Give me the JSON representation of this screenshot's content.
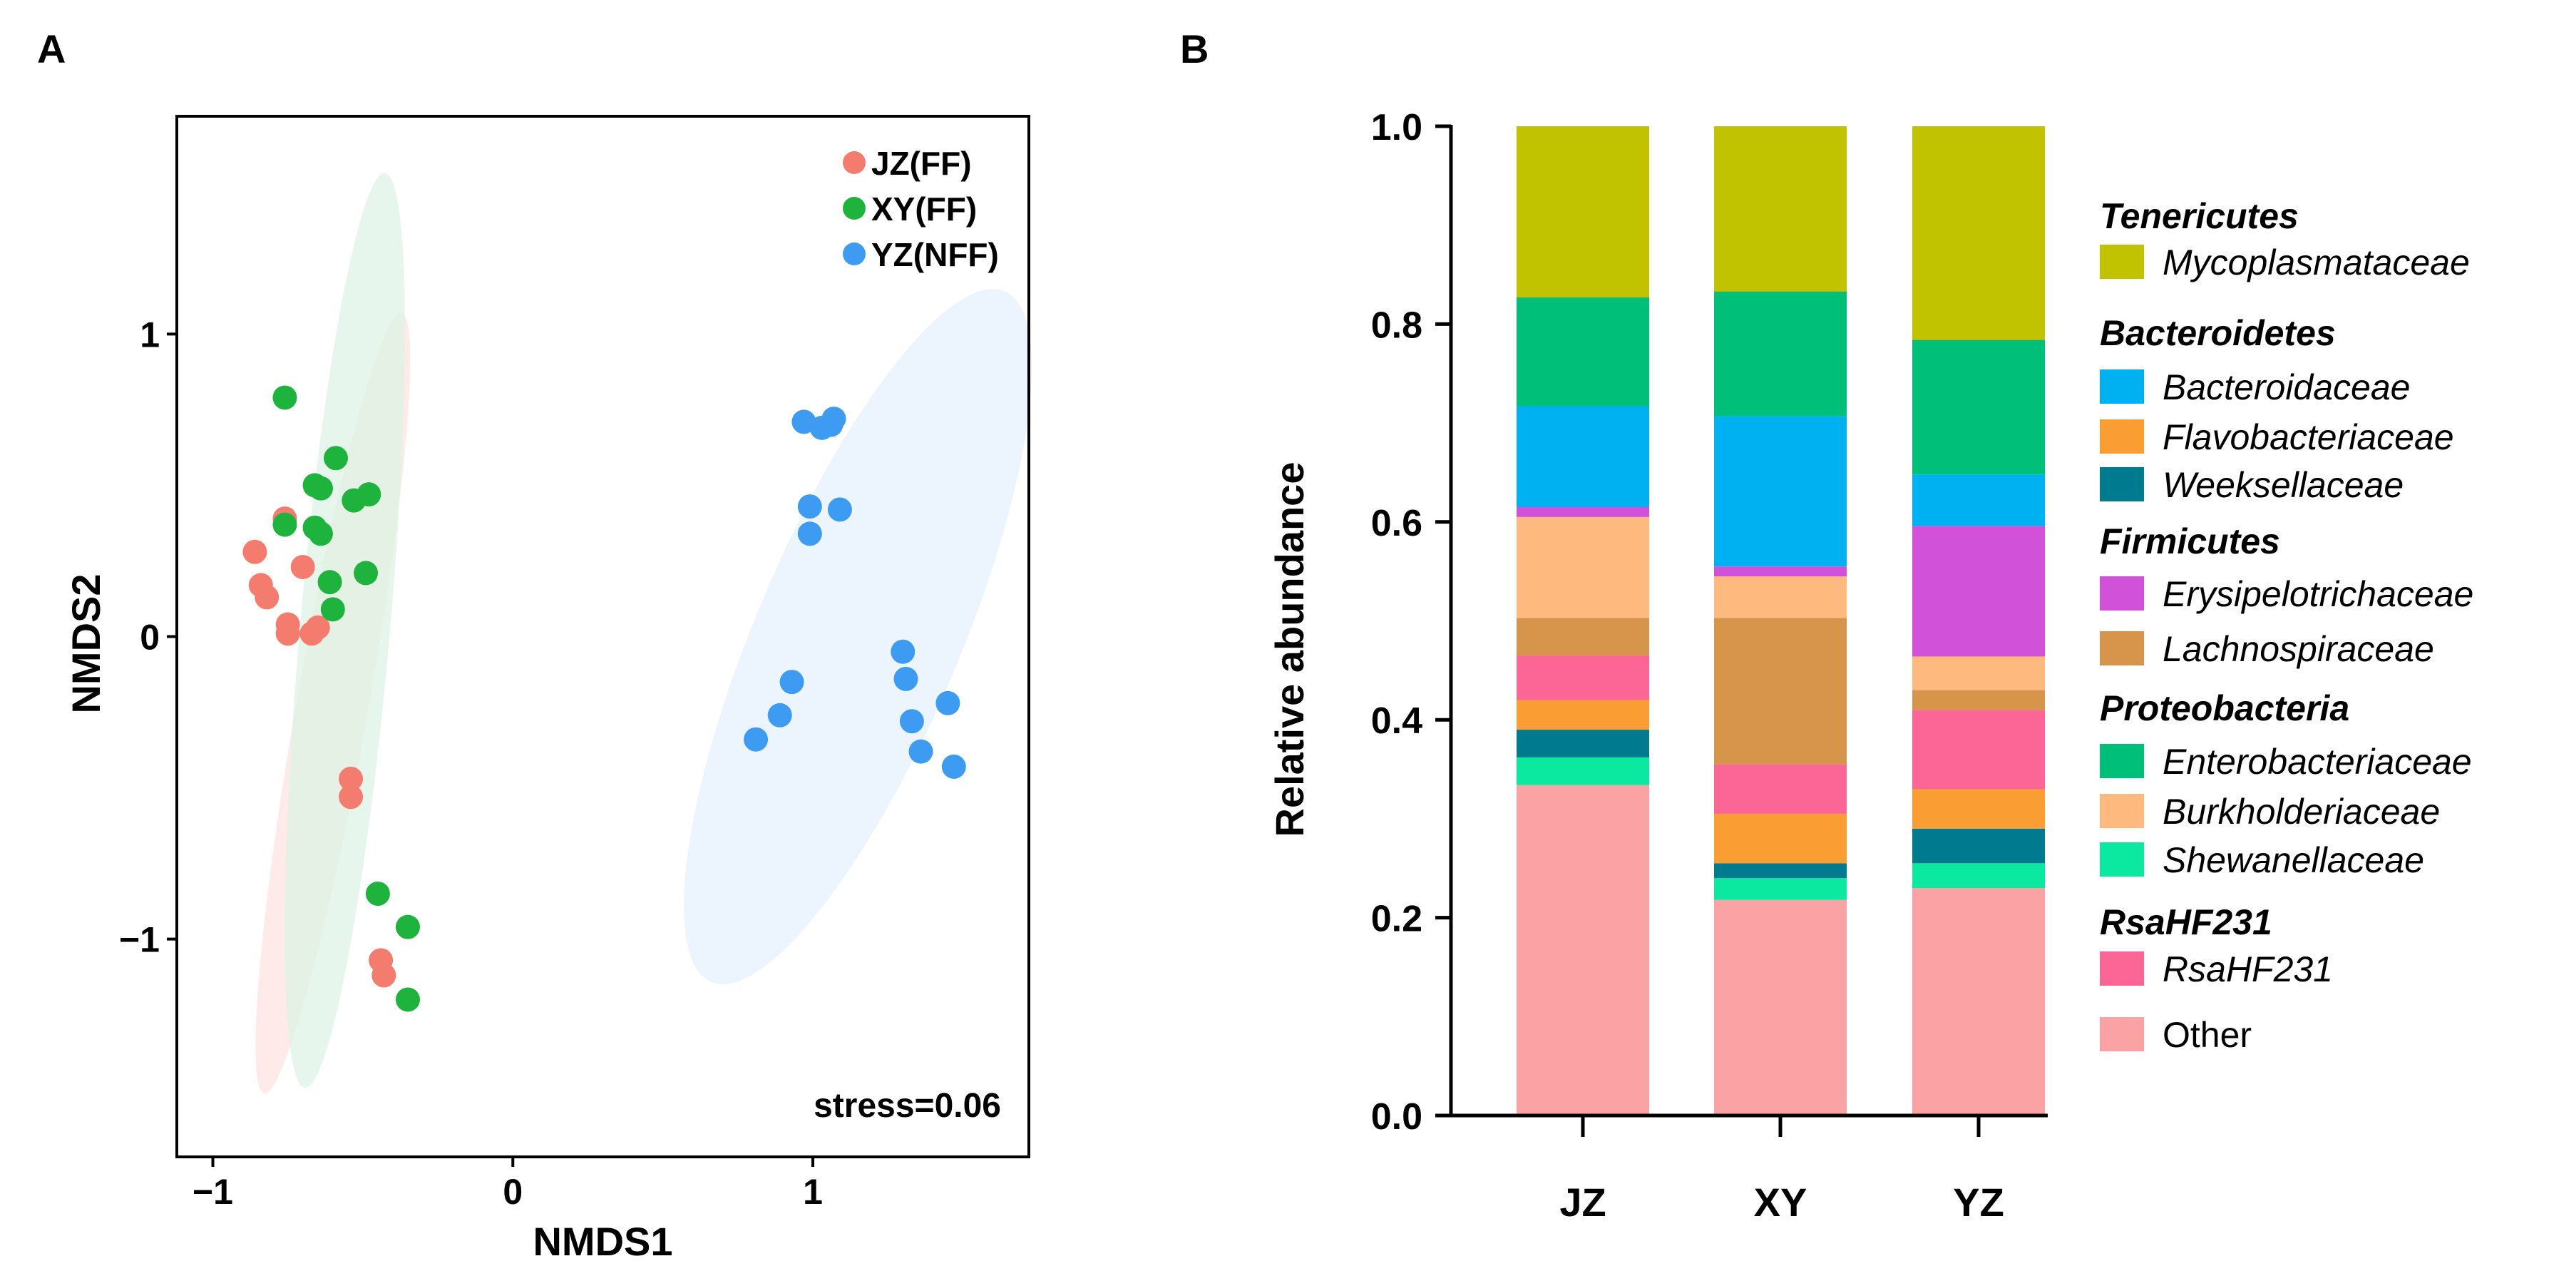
{
  "panels": {
    "a": "A",
    "b": "B"
  },
  "chart_data": [
    {
      "type": "scatter",
      "panel": "A",
      "xlabel": "NMDS1",
      "ylabel": "NMDS2",
      "xlim": [
        -1.12,
        1.72
      ],
      "ylim": [
        -1.72,
        1.72
      ],
      "xticks": [
        -1,
        0,
        1
      ],
      "xtick_labels": [
        "−1",
        "0",
        "1"
      ],
      "yticks": [
        -1,
        0,
        1
      ],
      "ytick_labels": [
        "−1",
        "0",
        "1"
      ],
      "grid": false,
      "legend_position": "top-right",
      "annotation": "stress=0.06",
      "series": [
        {
          "name": "JZ(FF)",
          "color": "#F47C6E",
          "ellipse_color": "#FDE3E0",
          "ellipse": {
            "center": [
              -0.6,
              -0.22
            ],
            "semi_axes": [
              1.32,
              0.12
            ],
            "rotation_deg": -80
          },
          "points": [
            [
              -0.86,
              0.28
            ],
            [
              -0.84,
              0.17
            ],
            [
              -0.82,
              0.13
            ],
            [
              -0.76,
              0.39
            ],
            [
              -0.75,
              0.04
            ],
            [
              -0.75,
              0.01
            ],
            [
              -0.7,
              0.23
            ],
            [
              -0.67,
              0.01
            ],
            [
              -0.65,
              0.03
            ],
            [
              -0.54,
              -0.47
            ],
            [
              -0.54,
              -0.53
            ],
            [
              -0.44,
              -1.07
            ],
            [
              -0.43,
              -1.12
            ]
          ]
        },
        {
          "name": "XY(FF)",
          "color": "#1DB33D",
          "ellipse_color": "#DDF3E6",
          "ellipse": {
            "center": [
              -0.56,
              0.02
            ],
            "semi_axes": [
              1.53,
              0.15
            ],
            "rotation_deg": -85
          },
          "points": [
            [
              -0.76,
              0.79
            ],
            [
              -0.76,
              0.37
            ],
            [
              -0.66,
              0.5
            ],
            [
              -0.64,
              0.49
            ],
            [
              -0.66,
              0.36
            ],
            [
              -0.64,
              0.34
            ],
            [
              -0.59,
              0.59
            ],
            [
              -0.61,
              0.18
            ],
            [
              -0.6,
              0.09
            ],
            [
              -0.53,
              0.45
            ],
            [
              -0.48,
              0.47
            ],
            [
              -0.49,
              0.21
            ],
            [
              -0.45,
              -0.85
            ],
            [
              -0.35,
              -0.96
            ],
            [
              -0.35,
              -1.2
            ]
          ]
        },
        {
          "name": "YZ(NFF)",
          "color": "#3D9BF2",
          "ellipse_color": "#E6F0FC",
          "ellipse": {
            "center": [
              1.15,
              0.0
            ],
            "semi_axes": [
              1.25,
              0.34
            ],
            "rotation_deg": -67
          },
          "points": [
            [
              0.97,
              0.71
            ],
            [
              1.03,
              0.69
            ],
            [
              1.06,
              0.7
            ],
            [
              1.07,
              0.72
            ],
            [
              0.99,
              0.43
            ],
            [
              0.99,
              0.34
            ],
            [
              1.09,
              0.42
            ],
            [
              0.93,
              -0.15
            ],
            [
              0.89,
              -0.26
            ],
            [
              0.81,
              -0.34
            ],
            [
              1.3,
              -0.05
            ],
            [
              1.31,
              -0.14
            ],
            [
              1.33,
              -0.28
            ],
            [
              1.36,
              -0.38
            ],
            [
              1.45,
              -0.22
            ],
            [
              1.47,
              -0.43
            ]
          ]
        }
      ]
    },
    {
      "type": "bar",
      "subtype": "stacked",
      "panel": "B",
      "xlabel": "",
      "ylabel": "Relative abundance",
      "ylim": [
        0,
        1
      ],
      "yticks": [
        0,
        0.2,
        0.4,
        0.6,
        0.8,
        1.0
      ],
      "ytick_labels": [
        "0.0",
        "0.2",
        "0.4",
        "0.6",
        "0.8",
        "1.0"
      ],
      "categories": [
        "JZ",
        "XY",
        "YZ"
      ],
      "legend_position": "right",
      "series": [
        {
          "name": "Other",
          "group": "",
          "color": "#FBA2A4",
          "values": [
            0.334,
            0.218,
            0.23
          ]
        },
        {
          "name": "Shewanellaceae",
          "group": "Proteobacteria",
          "color": "#0BE8A0",
          "values": [
            0.028,
            0.022,
            0.025
          ]
        },
        {
          "name": "Weeksellaceae",
          "group": "Bacteroidetes",
          "color": "#007A8F",
          "values": [
            0.028,
            0.015,
            0.035
          ]
        },
        {
          "name": "Flavobacteriaceae",
          "group": "Bacteroidetes",
          "color": "#FA9D32",
          "values": [
            0.03,
            0.05,
            0.04
          ]
        },
        {
          "name": "RsaHF231",
          "group": "RsaHF231",
          "color": "#FC6696",
          "values": [
            0.045,
            0.05,
            0.08
          ]
        },
        {
          "name": "Lachnospiraceae",
          "group": "Firmicutes",
          "color": "#D6954A",
          "values": [
            0.038,
            0.148,
            0.02
          ]
        },
        {
          "name": "Burkholderiaceae",
          "group": "Proteobacteria",
          "color": "#FDB97E",
          "values": [
            0.102,
            0.042,
            0.034
          ]
        },
        {
          "name": "Erysipelotrichaceae",
          "group": "Firmicutes",
          "color": "#D152D9",
          "values": [
            0.01,
            0.01,
            0.132
          ]
        },
        {
          "name": "Bacteroidaceae",
          "group": "Bacteroidetes",
          "color": "#00B1F1",
          "values": [
            0.102,
            0.152,
            0.052
          ]
        },
        {
          "name": "Enterobacteriaceae",
          "group": "Proteobacteria",
          "color": "#00BF78",
          "values": [
            0.11,
            0.126,
            0.136
          ]
        },
        {
          "name": "Mycoplasmataceae",
          "group": "Tenericutes",
          "color": "#C1C200",
          "values": [
            0.173,
            0.167,
            0.216
          ]
        }
      ],
      "legend": [
        {
          "header": "Tenericutes",
          "items": [
            "Mycoplasmataceae"
          ]
        },
        {
          "header": "Bacteroidetes",
          "items": [
            "Bacteroidaceae",
            "Flavobacteriaceae",
            "Weeksellaceae"
          ]
        },
        {
          "header": "Firmicutes",
          "items": [
            "Erysipelotrichaceae",
            "Lachnospiraceae"
          ]
        },
        {
          "header": "Proteobacteria",
          "items": [
            "Enterobacteriaceae",
            "Burkholderiaceae",
            "Shewanellaceae"
          ]
        },
        {
          "header": "RsaHF231",
          "items": [
            "RsaHF231"
          ]
        },
        {
          "header": "",
          "items": [
            "Other"
          ]
        }
      ]
    }
  ]
}
